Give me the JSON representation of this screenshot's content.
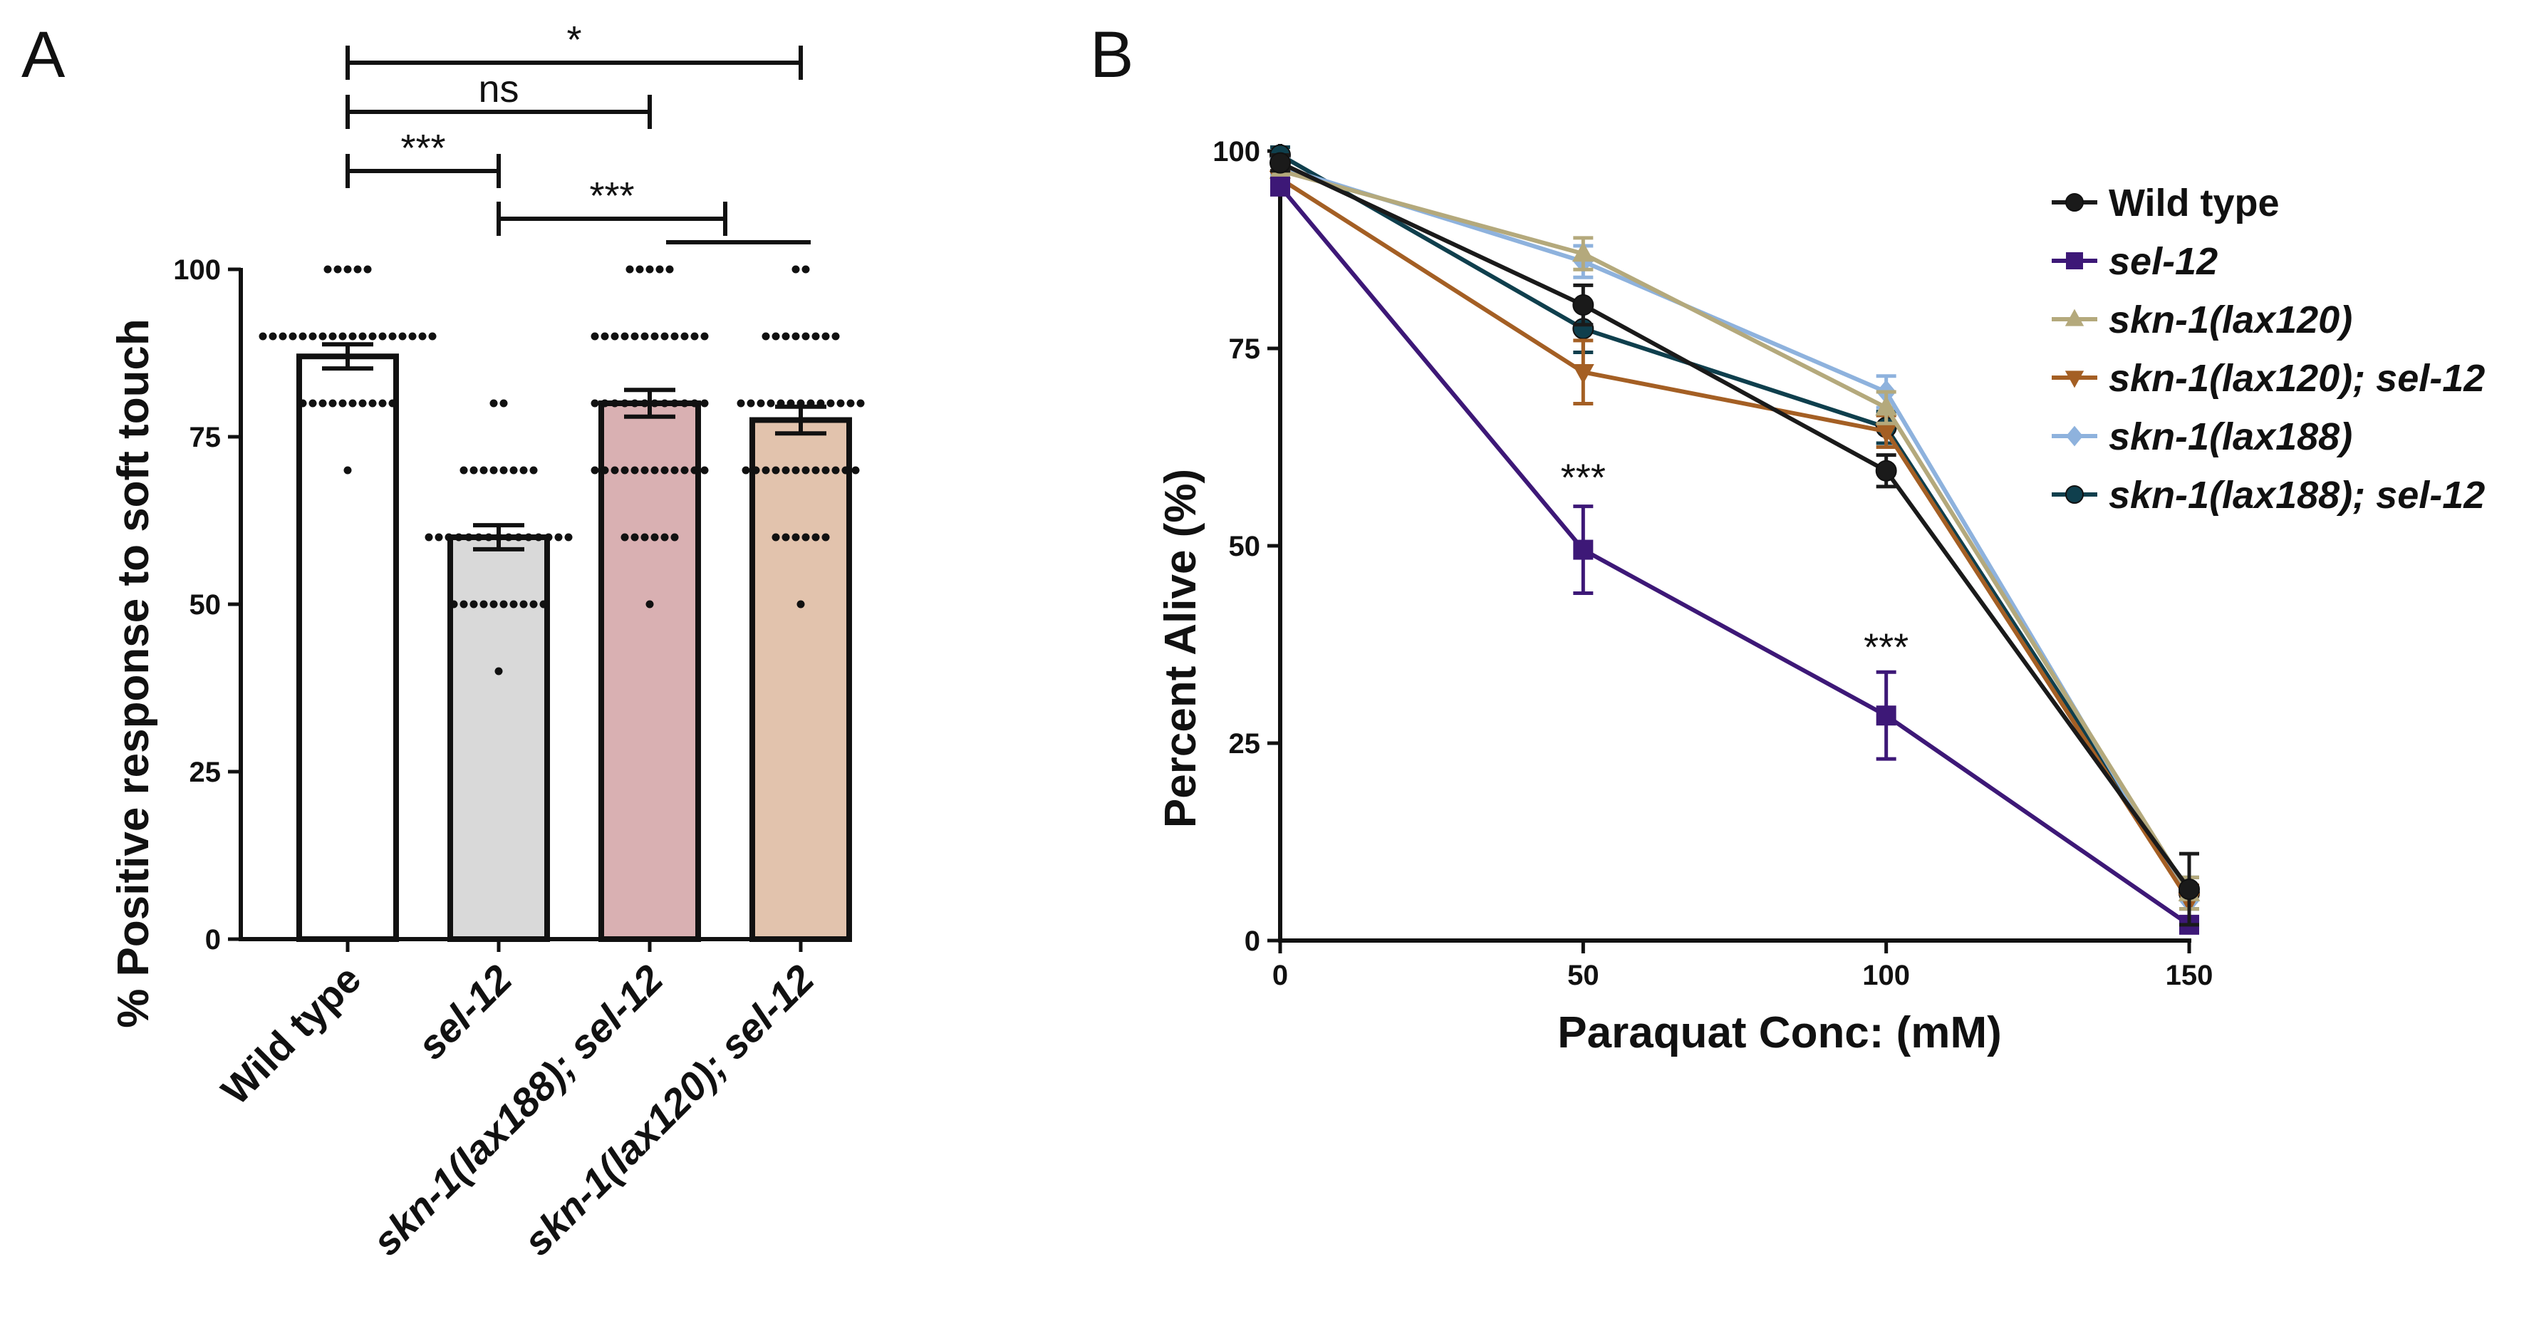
{
  "panels": {
    "a_letter": "A",
    "b_letter": "B"
  },
  "chart_data": [
    {
      "type": "bar",
      "panel": "A",
      "ylabel": "% Positive response to soft touch",
      "xlabel": "",
      "ylim": [
        0,
        100
      ],
      "yticks": [
        0,
        25,
        50,
        75,
        100
      ],
      "grid": false,
      "categories": [
        {
          "label": "Wild type",
          "italic": false
        },
        {
          "label": "sel-12",
          "italic": true
        },
        {
          "label": "skn-1(lax188); sel-12",
          "italic": true
        },
        {
          "label": "skn-1(lax120); sel-12",
          "italic": true
        }
      ],
      "values": [
        87,
        60,
        80,
        77.5
      ],
      "sem": [
        1.8,
        1.8,
        2,
        2
      ],
      "bar_colors": [
        "#ffffff",
        "#d9d9d9",
        "#d9b0b2",
        "#e2c3ad"
      ],
      "points": [
        [
          100,
          100,
          100,
          100,
          100,
          90,
          90,
          90,
          90,
          90,
          90,
          90,
          90,
          90,
          90,
          90,
          90,
          90,
          90,
          90,
          90,
          90,
          90,
          80,
          80,
          80,
          80,
          80,
          80,
          80,
          80,
          80,
          80,
          70
        ],
        [
          80,
          80,
          70,
          70,
          70,
          70,
          70,
          70,
          70,
          70,
          60,
          60,
          60,
          60,
          60,
          60,
          60,
          60,
          60,
          60,
          60,
          60,
          60,
          60,
          60,
          50,
          50,
          50,
          50,
          50,
          50,
          50,
          50,
          50,
          50,
          40
        ],
        [
          100,
          100,
          100,
          100,
          100,
          90,
          90,
          90,
          90,
          90,
          90,
          90,
          90,
          90,
          90,
          90,
          90,
          80,
          80,
          80,
          80,
          80,
          80,
          80,
          80,
          80,
          80,
          80,
          80,
          70,
          70,
          70,
          70,
          70,
          70,
          70,
          70,
          70,
          70,
          70,
          70,
          60,
          60,
          60,
          60,
          60,
          60,
          50
        ],
        [
          100,
          100,
          90,
          90,
          90,
          90,
          90,
          90,
          90,
          90,
          80,
          80,
          80,
          80,
          80,
          80,
          80,
          80,
          80,
          80,
          80,
          80,
          80,
          70,
          70,
          70,
          70,
          70,
          70,
          70,
          70,
          70,
          70,
          70,
          70,
          60,
          60,
          60,
          60,
          60,
          60,
          50
        ]
      ],
      "comparisons": [
        {
          "from": 0,
          "to": 3,
          "label": "*"
        },
        {
          "from": 0,
          "to": 2,
          "label": "ns"
        },
        {
          "from": 0,
          "to": 1,
          "label": "***"
        },
        {
          "from": 1,
          "to": 2.5,
          "label": "***"
        }
      ]
    },
    {
      "type": "line",
      "panel": "B",
      "xlabel": "Paraquat Conc: (mM)",
      "ylabel": "Percent Alive (%)",
      "xlim": [
        0,
        150
      ],
      "ylim": [
        0,
        100
      ],
      "xticks": [
        0,
        50,
        100,
        150
      ],
      "yticks": [
        0,
        25,
        50,
        75,
        100
      ],
      "grid": false,
      "legend_position": "right",
      "x": [
        0,
        50,
        100,
        150
      ],
      "series": [
        {
          "name": "Wild type",
          "italic": false,
          "color": "#1a1a1a",
          "marker": "circle",
          "values": [
            98.5,
            80.5,
            59.5,
            6.5
          ],
          "err": [
            1,
            2.5,
            2,
            4.5
          ]
        },
        {
          "name": "sel-12",
          "italic": true,
          "color": "#3d1877",
          "marker": "square",
          "values": [
            95.5,
            49.5,
            28.5,
            2
          ],
          "err": [
            1,
            5.5,
            5.5,
            1
          ]
        },
        {
          "name": "skn-1(lax120)",
          "italic": true,
          "color": "#b4a97c",
          "marker": "triangle-up",
          "values": [
            97.5,
            87,
            67.5,
            6
          ],
          "err": [
            1,
            2,
            2,
            2
          ]
        },
        {
          "name": "skn-1(lax120); sel-12",
          "italic": true,
          "color": "#a45f24",
          "marker": "triangle-down",
          "values": [
            96.5,
            72,
            64.5,
            5
          ],
          "err": [
            1,
            4,
            2,
            2
          ]
        },
        {
          "name": "skn-1(lax188)",
          "italic": true,
          "color": "#8eb2dd",
          "marker": "diamond",
          "values": [
            98,
            86,
            69.5,
            5
          ],
          "err": [
            1,
            2,
            2,
            2
          ]
        },
        {
          "name": "skn-1(lax188); sel-12",
          "italic": true,
          "color": "#0f3f4d",
          "marker": "circle",
          "values": [
            99.5,
            77.5,
            65,
            6
          ],
          "err": [
            1,
            3,
            2,
            2
          ]
        }
      ],
      "annotations": [
        {
          "x": 50,
          "y": 57,
          "text": "***"
        },
        {
          "x": 100,
          "y": 35.5,
          "text": "***"
        }
      ]
    }
  ]
}
